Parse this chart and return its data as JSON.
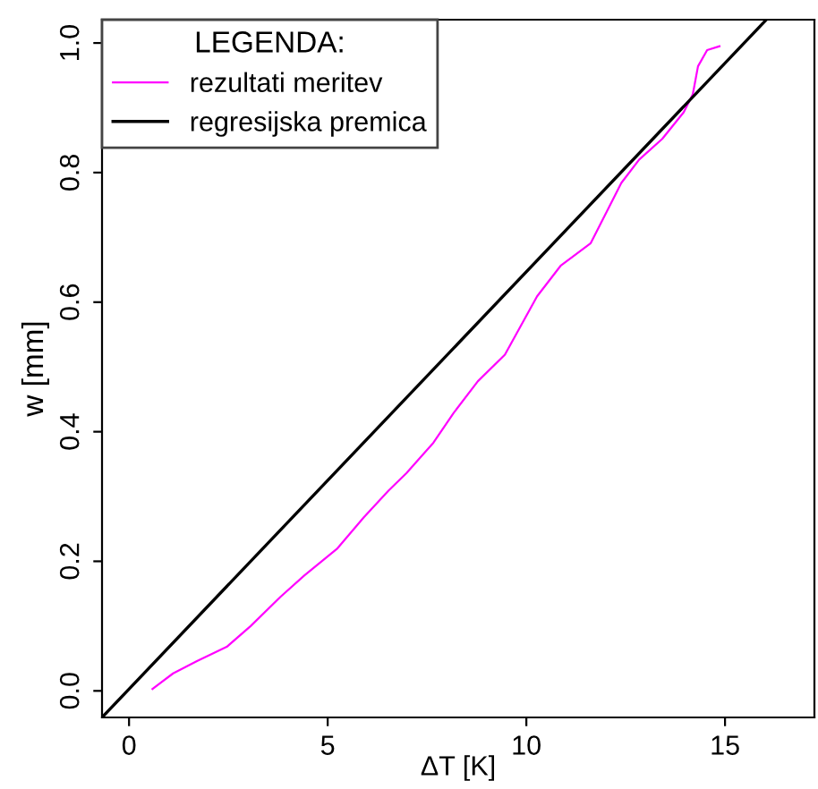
{
  "chart_data": {
    "type": "line",
    "xlabel": "ΔT [K]",
    "ylabel": "w [mm]",
    "legend_title": "LEGENDA:",
    "legend": "top left",
    "grid": false,
    "xlim": [
      -0.68,
      17.25
    ],
    "ylim": [
      -0.041,
      1.036
    ],
    "xticks": [
      0,
      5,
      10,
      15
    ],
    "yticks": [
      {
        "value": 0,
        "label": "0.0"
      },
      0.2,
      0.4,
      0.6,
      0.8,
      {
        "value": 1,
        "label": "1.0"
      }
    ],
    "series": [
      {
        "name": "rezultati meritev",
        "color": "#ff00ff",
        "x": [
          0.59,
          1.11,
          1.71,
          2.46,
          3.06,
          3.81,
          4.41,
          5.23,
          5.91,
          6.53,
          6.98,
          7.66,
          8.17,
          8.78,
          9.46,
          10.27,
          10.86,
          11.62,
          12.39,
          12.84,
          13.42,
          13.96,
          14.19,
          14.32,
          14.55,
          14.86
        ],
        "values": [
          0.003,
          0.027,
          0.046,
          0.068,
          0.1,
          0.145,
          0.178,
          0.219,
          0.268,
          0.309,
          0.336,
          0.383,
          0.429,
          0.478,
          0.519,
          0.609,
          0.656,
          0.691,
          0.784,
          0.82,
          0.852,
          0.893,
          0.921,
          0.964,
          0.989,
          0.995
        ]
      },
      {
        "name": "regresijska premica",
        "color": "#000000",
        "x": [
          -0.68,
          16.04
        ],
        "values": [
          -0.041,
          1.036
        ]
      }
    ]
  }
}
